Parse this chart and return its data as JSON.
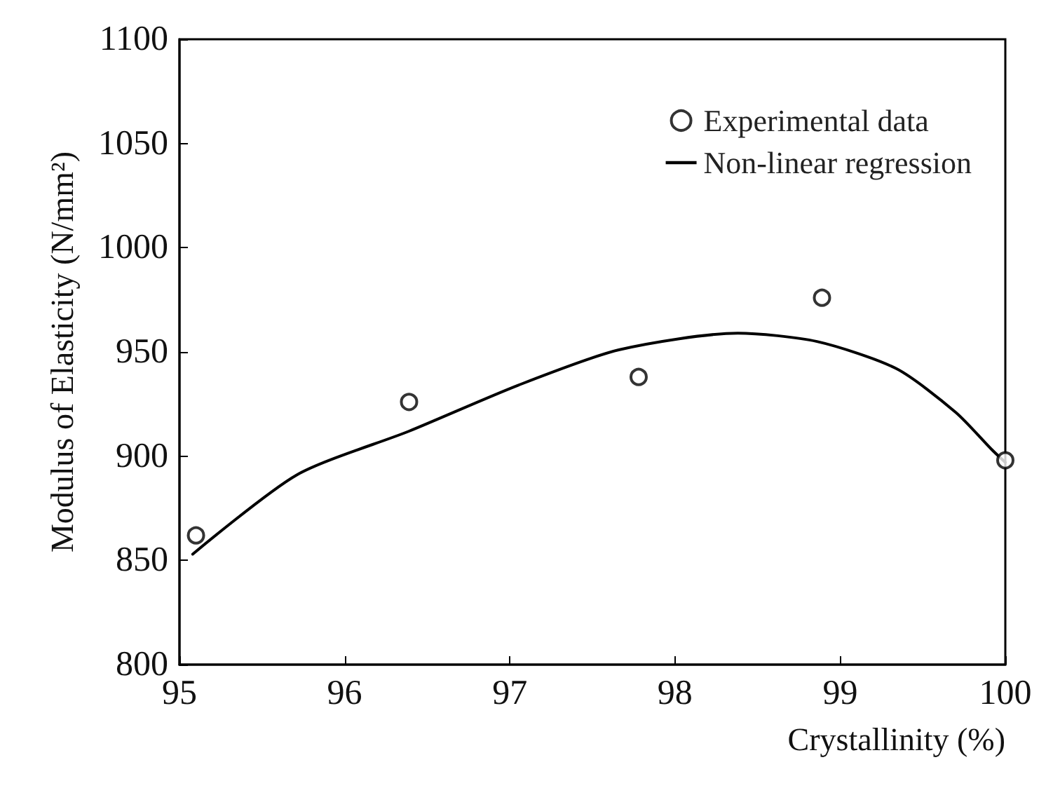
{
  "chart_data": {
    "type": "scatter",
    "xlabel": "Crystallinity (%)",
    "ylabel": "Modulus of Elasticity (N/mm²)",
    "xlim": [
      95,
      100
    ],
    "xticks": [
      95,
      96,
      97,
      98,
      99,
      100
    ],
    "ylim": [
      800,
      1100
    ],
    "yticks": [
      800,
      850,
      900,
      950,
      1000,
      1050,
      1100
    ],
    "grid": false,
    "legend": "top right",
    "series": [
      {
        "name": "Experimental data",
        "marker": "circle",
        "color": "#000000",
        "x": [
          95.1,
          96.39,
          97.78,
          98.89,
          100
        ],
        "values": [
          862,
          926,
          938,
          976,
          898
        ]
      },
      {
        "name": "Non-linear regression",
        "type": "line",
        "marker": "none",
        "line_style": "solid",
        "color": "#000000",
        "x": [
          95.08,
          95.71,
          96.39,
          97.05,
          97.66,
          98.38,
          98.86,
          99.34,
          99.7,
          99.92,
          100
        ],
        "values": [
          853,
          891,
          912,
          934,
          951,
          959,
          955,
          942,
          921,
          903,
          897
        ]
      }
    ]
  }
}
